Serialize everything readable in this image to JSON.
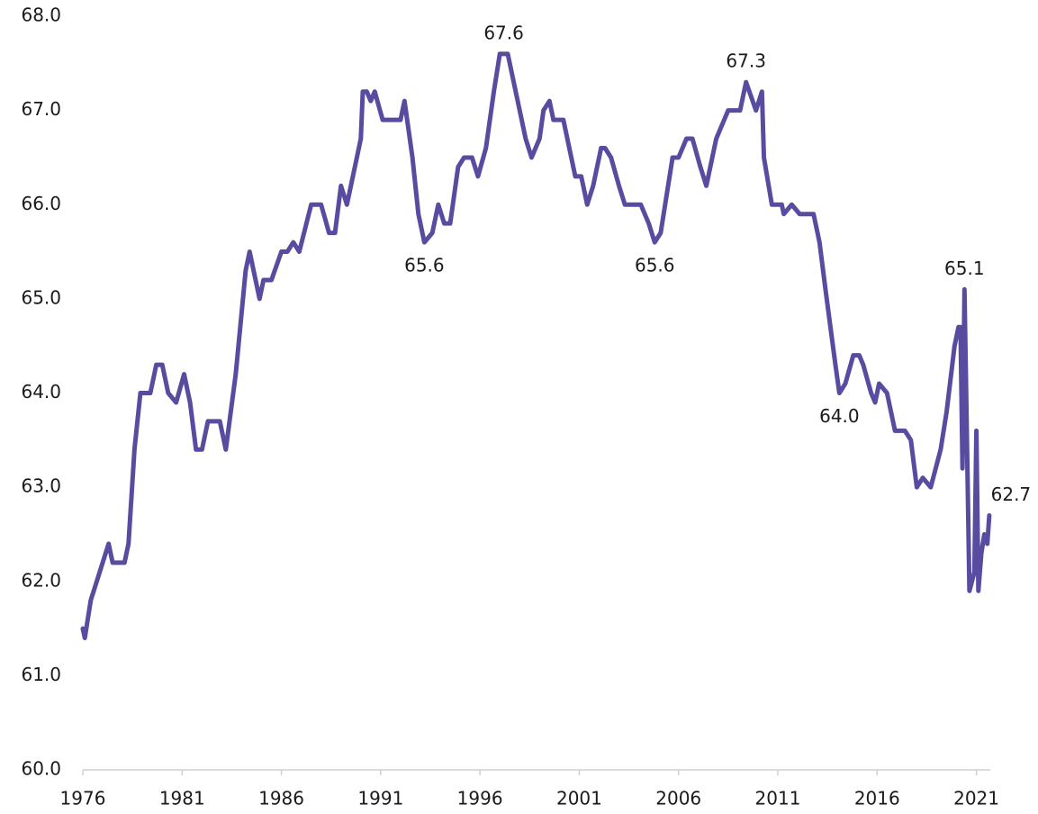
{
  "chart_data": {
    "type": "line",
    "x": [
      1976.0,
      1976.1,
      1976.4,
      1976.7,
      1977.3,
      1977.5,
      1978.1,
      1978.3,
      1978.6,
      1978.9,
      1979.4,
      1979.7,
      1980.0,
      1980.3,
      1980.7,
      1981.1,
      1981.4,
      1981.7,
      1982.0,
      1982.3,
      1982.9,
      1983.2,
      1983.7,
      1984.2,
      1984.4,
      1984.9,
      1985.1,
      1985.5,
      1986.0,
      1986.3,
      1986.6,
      1986.9,
      1987.5,
      1988.0,
      1988.4,
      1988.7,
      1989.0,
      1989.3,
      1990.0,
      1990.1,
      1990.3,
      1990.5,
      1990.7,
      1991.1,
      1992.0,
      1992.2,
      1992.6,
      1992.9,
      1993.2,
      1993.6,
      1993.9,
      1994.2,
      1994.5,
      1994.9,
      1995.2,
      1995.6,
      1995.9,
      1996.3,
      1996.7,
      1997.0,
      1997.4,
      1998.0,
      1998.3,
      1998.6,
      1999.0,
      1999.2,
      1999.5,
      1999.7,
      2000.2,
      2000.8,
      2001.1,
      2001.4,
      2001.7,
      2002.1,
      2002.3,
      2002.6,
      2003.0,
      2003.3,
      2004.1,
      2004.5,
      2004.8,
      2005.1,
      2005.7,
      2006.0,
      2006.4,
      2006.7,
      2007.1,
      2007.4,
      2007.9,
      2008.3,
      2008.5,
      2009.1,
      2009.4,
      2009.9,
      2010.2,
      2010.3,
      2010.7,
      2011.2,
      2011.3,
      2011.7,
      2012.1,
      2012.8,
      2013.1,
      2013.4,
      2013.9,
      2014.1,
      2014.4,
      2014.8,
      2015.1,
      2015.3,
      2015.7,
      2015.9,
      2016.1,
      2016.5,
      2016.9,
      2017.4,
      2017.7,
      2018.0,
      2018.3,
      2018.7,
      2019.2,
      2019.5,
      2019.9,
      2020.1,
      2020.2,
      2020.3,
      2020.4,
      2020.65,
      2020.9,
      2021.0,
      2021.1,
      2021.25,
      2021.4,
      2021.55,
      2021.65
    ],
    "series": [
      {
        "color": "#574ca0",
        "values": [
          61.5,
          61.4,
          61.8,
          62.0,
          62.4,
          62.2,
          62.2,
          62.4,
          63.4,
          64.0,
          64.0,
          64.3,
          64.3,
          64.0,
          63.9,
          64.2,
          63.9,
          63.4,
          63.4,
          63.7,
          63.7,
          63.4,
          64.2,
          65.3,
          65.5,
          65.0,
          65.2,
          65.2,
          65.5,
          65.5,
          65.6,
          65.5,
          66.0,
          66.0,
          65.7,
          65.7,
          66.2,
          66.0,
          66.7,
          67.2,
          67.2,
          67.1,
          67.2,
          66.9,
          66.9,
          67.1,
          66.5,
          65.9,
          65.6,
          65.7,
          66.0,
          65.8,
          65.8,
          66.4,
          66.5,
          66.5,
          66.3,
          66.6,
          67.2,
          67.6,
          67.6,
          67.0,
          66.7,
          66.5,
          66.7,
          67.0,
          67.1,
          66.9,
          66.9,
          66.3,
          66.3,
          66.0,
          66.2,
          66.6,
          66.6,
          66.5,
          66.2,
          66.0,
          66.0,
          65.8,
          65.6,
          65.7,
          66.5,
          66.5,
          66.7,
          66.7,
          66.4,
          66.2,
          66.7,
          66.9,
          67.0,
          67.0,
          67.3,
          67.0,
          67.2,
          66.5,
          66.0,
          66.0,
          65.9,
          66.0,
          65.9,
          65.9,
          65.6,
          65.1,
          64.3,
          64.0,
          64.1,
          64.4,
          64.4,
          64.3,
          64.0,
          63.9,
          64.1,
          64.0,
          63.6,
          63.6,
          63.5,
          63.0,
          63.1,
          63.0,
          63.4,
          63.8,
          64.5,
          64.7,
          64.7,
          63.2,
          65.1,
          61.9,
          62.1,
          63.6,
          61.9,
          62.3,
          62.5,
          62.4,
          62.7
        ]
      }
    ],
    "xlim": [
      1976,
      2021.7
    ],
    "xticks": [
      1976,
      1981,
      1986,
      1991,
      1996,
      2001,
      2006,
      2011,
      2016,
      2021
    ],
    "ylim": [
      60,
      68
    ],
    "yticks": [
      {
        "value": 60,
        "label": "60.0"
      },
      {
        "value": 61,
        "label": "61.0"
      },
      {
        "value": 62,
        "label": "62.0"
      },
      {
        "value": 63,
        "label": "63.0"
      },
      {
        "value": 64,
        "label": "64.0"
      },
      {
        "value": 65,
        "label": "65.0"
      },
      {
        "value": 66,
        "label": "66.0"
      },
      {
        "value": 67,
        "label": "67.0"
      },
      {
        "value": 68,
        "label": "68.0"
      }
    ],
    "annotations": [
      {
        "text": "67.6",
        "x": 1997.2,
        "y": 67.6
      },
      {
        "text": "65.6",
        "x": 1993.2,
        "y": 65.6
      },
      {
        "text": "65.6",
        "x": 2004.8,
        "y": 65.6
      },
      {
        "text": "67.3",
        "x": 2009.4,
        "y": 67.3
      },
      {
        "text": "64.0",
        "x": 2014.1,
        "y": 64.0
      },
      {
        "text": "65.1",
        "x": 2020.4,
        "y": 65.1
      },
      {
        "text": "62.7",
        "x": 2021.65,
        "y": 62.7
      }
    ]
  }
}
